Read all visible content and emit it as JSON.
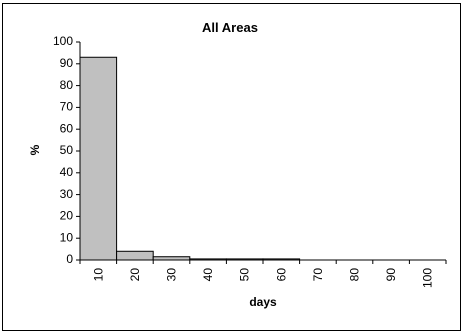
{
  "chart_data": {
    "type": "bar",
    "title": "All Areas",
    "xlabel": "days",
    "ylabel": "%",
    "categories": [
      "10",
      "20",
      "30",
      "40",
      "50",
      "60",
      "70",
      "80",
      "90",
      "100"
    ],
    "values": [
      93,
      4,
      1.5,
      0.5,
      0.5,
      0.5,
      0,
      0,
      0,
      0
    ],
    "ylim": [
      0,
      100
    ],
    "yticks": [
      0,
      10,
      20,
      30,
      40,
      50,
      60,
      70,
      80,
      90,
      100
    ],
    "grid": false,
    "legend": "none",
    "bar_color": "#c0c0c0"
  }
}
